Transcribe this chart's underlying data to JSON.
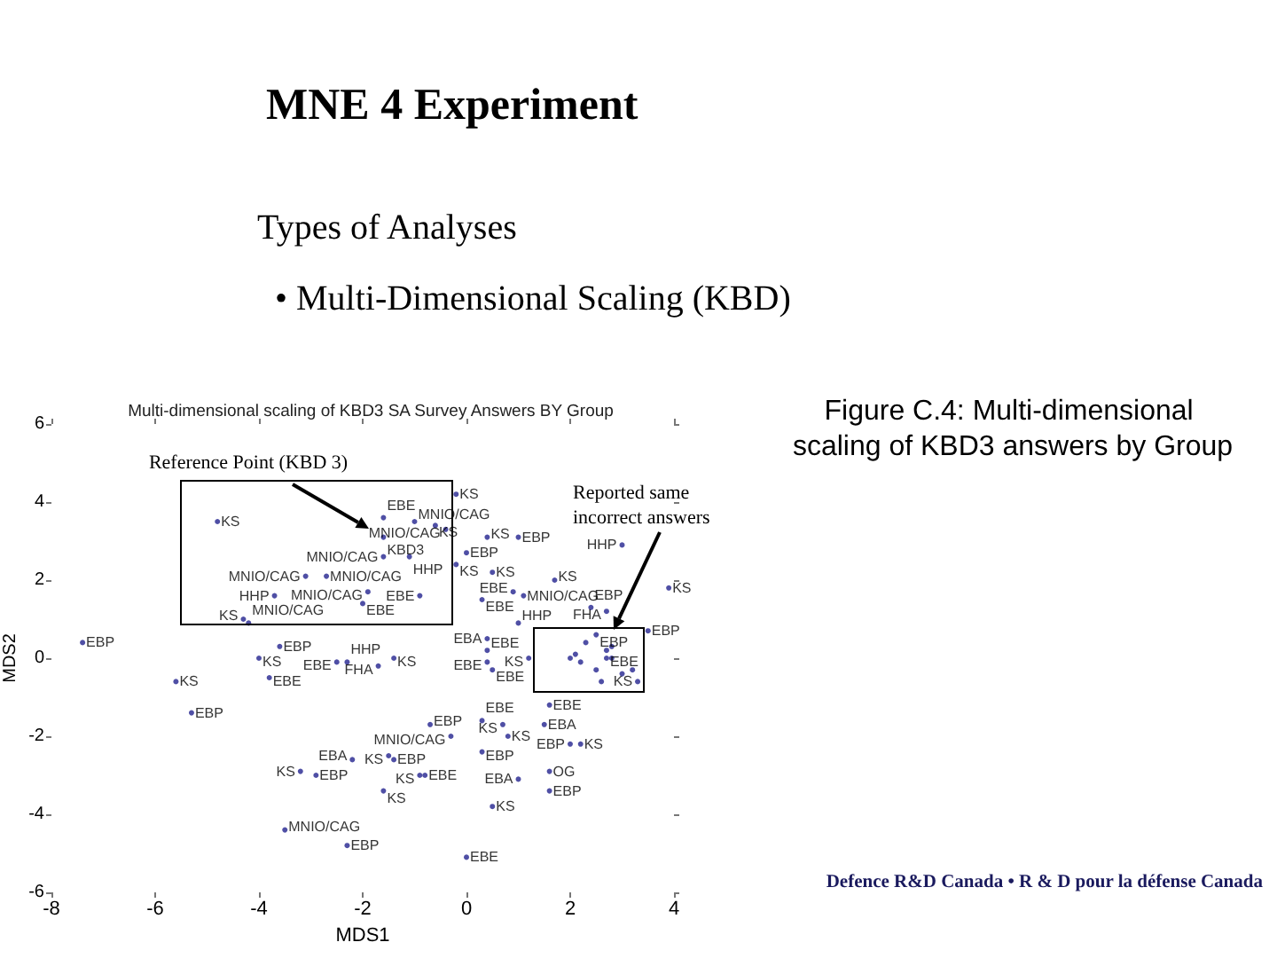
{
  "chart_data": {
    "type": "scatter",
    "title": "MNE 4 Experiment",
    "subtitle": "Multi-dimensional scaling of KBD3 SA Survey Answers BY Group",
    "xlabel": "MDS1",
    "ylabel": "MDS2",
    "xlim": [
      -8,
      4
    ],
    "ylim": [
      -6,
      6
    ],
    "xticks": [
      -8,
      -6,
      -4,
      -2,
      0,
      2,
      4
    ],
    "yticks": [
      -6,
      -4,
      -2,
      0,
      2,
      4,
      6
    ],
    "marker": "circle",
    "series": [
      {
        "name": "KS",
        "color": "#23238e",
        "x": [
          -4.8,
          -5.6,
          -0.2,
          -0.6,
          0.4,
          -0.2,
          0.5,
          1.7,
          3.9,
          -4.3,
          -4.0,
          1.2,
          -1.4,
          -3.2,
          0.7,
          0.8,
          2.2,
          -1.5,
          -1.6,
          -0.9,
          0.5,
          3.3
        ],
        "values": [
          3.5,
          -0.6,
          4.2,
          3.4,
          3.1,
          2.4,
          2.2,
          2.0,
          1.8,
          1.0,
          0.0,
          0.0,
          0.0,
          -2.9,
          -1.7,
          -2.0,
          -2.2,
          -2.5,
          -3.4,
          -3.0,
          -3.8,
          -0.6
        ]
      },
      {
        "name": "EBP",
        "color": "#23238e",
        "x": [
          -7.4,
          -5.3,
          1.0,
          0.0,
          2.4,
          3.5,
          -0.7,
          0.3,
          2.0,
          -2.9,
          -2.3,
          -3.6,
          1.6,
          -1.4,
          2.5
        ],
        "values": [
          0.4,
          -1.4,
          3.1,
          2.7,
          1.3,
          0.7,
          -1.7,
          -2.4,
          -2.2,
          -3.0,
          -4.8,
          0.3,
          -3.4,
          -2.6,
          0.6
        ]
      },
      {
        "name": "EBE",
        "color": "#23238e",
        "x": [
          -3.8,
          -1.6,
          0.9,
          0.3,
          -0.9,
          -2.5,
          0.4,
          0.4,
          0.5,
          1.6,
          0.3,
          -0.8,
          0.0,
          -2.0,
          2.7
        ],
        "values": [
          -0.5,
          3.6,
          1.7,
          1.5,
          1.6,
          -0.1,
          0.2,
          -0.1,
          -0.3,
          -1.2,
          -1.6,
          -3.0,
          -5.1,
          1.4,
          0.0
        ]
      },
      {
        "name": "MNIO/CAG",
        "color": "#23238e",
        "x": [
          -3.5,
          -3.1,
          -2.7,
          -4.2,
          -1.0,
          -0.4,
          -1.6,
          -1.9,
          1.1,
          -0.3
        ],
        "values": [
          -4.4,
          2.1,
          2.1,
          0.9,
          3.5,
          3.3,
          2.6,
          1.7,
          1.6,
          -2.0
        ]
      },
      {
        "name": "HHP",
        "color": "#23238e",
        "x": [
          -3.7,
          -1.1,
          3.0,
          1.0,
          -2.3
        ],
        "values": [
          1.6,
          2.6,
          2.9,
          0.9,
          -0.1
        ]
      },
      {
        "name": "FHA",
        "color": "#23238e",
        "x": [
          2.7,
          -1.7
        ],
        "values": [
          1.2,
          -0.2
        ]
      },
      {
        "name": "EBA",
        "color": "#23238e",
        "x": [
          0.4,
          1.5,
          -2.2,
          1.0
        ],
        "values": [
          0.5,
          -1.7,
          -2.6,
          -3.1
        ]
      },
      {
        "name": "OG",
        "color": "#23238e",
        "x": [
          1.6
        ],
        "values": [
          -2.9
        ]
      },
      {
        "name": "KBD3",
        "color": "#23238e",
        "x": [
          -1.6
        ],
        "values": [
          3.1
        ]
      },
      {
        "color": "#23238e",
        "x": [
          2.8,
          3.0,
          2.6,
          3.2,
          2.3,
          2.1,
          2.7,
          2.2,
          2.5,
          2.0,
          2.8
        ],
        "values": [
          0.0,
          -0.4,
          -0.6,
          -0.3,
          0.4,
          0.1,
          0.2,
          -0.1,
          -0.3,
          0.0,
          0.3
        ]
      }
    ],
    "annotations": [
      "Types of Analyses",
      "• Multi-Dimensional Scaling (KBD)",
      "Figure C.4: Multi-dimensional scaling of KBD3 answers by Group",
      "Reference Point (KBD 3)",
      "Reported same incorrect answers",
      "Defence R&D Canada • R & D pour la défense Canada"
    ]
  }
}
